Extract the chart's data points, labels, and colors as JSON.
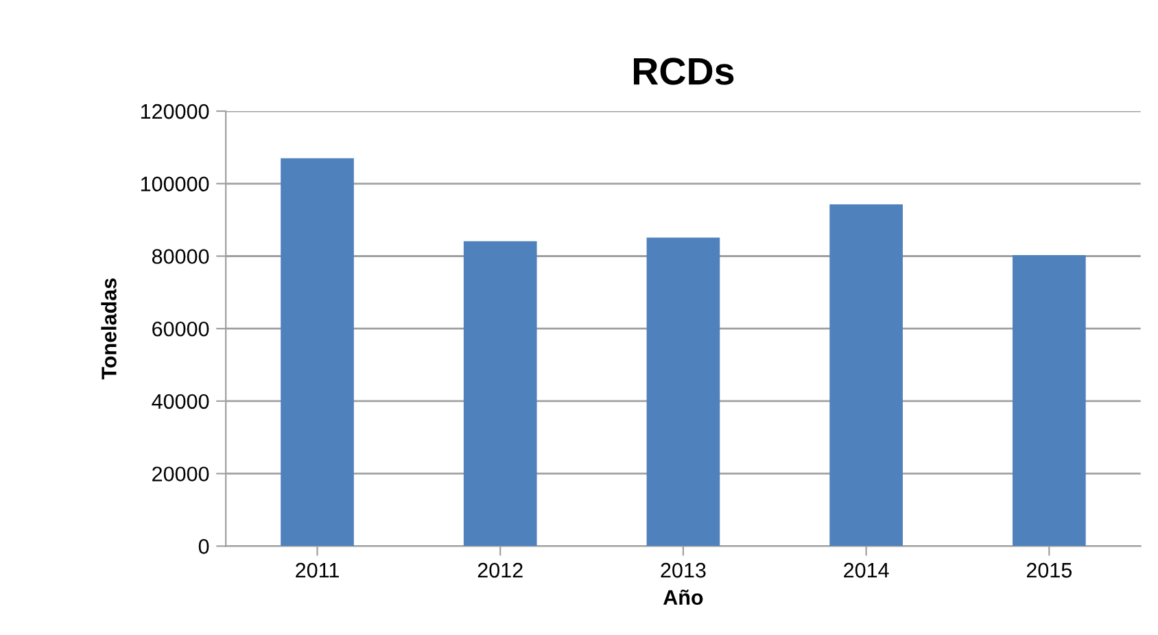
{
  "chart_data": {
    "type": "bar",
    "title": "RCDs",
    "xlabel": "Año",
    "ylabel": "Toneladas",
    "categories": [
      "2011",
      "2012",
      "2013",
      "2014",
      "2015"
    ],
    "values": [
      107000,
      84100,
      85100,
      94300,
      80300
    ],
    "color": "#4f81bd",
    "ylim": [
      0,
      120000
    ],
    "yticks": [
      0,
      20000,
      40000,
      60000,
      80000,
      100000,
      120000
    ],
    "grid": "y",
    "legend": false
  }
}
